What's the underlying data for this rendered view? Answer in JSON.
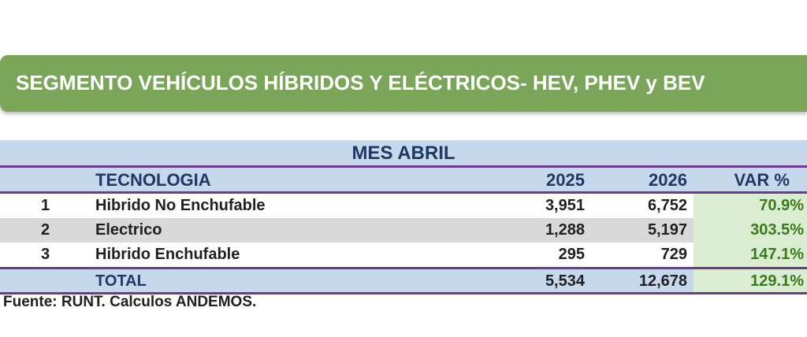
{
  "banner": {
    "title": "SEGMENTO VEHÍCULOS HÍBRIDOS Y ELÉCTRICOS- HEV, PHEV y BEV"
  },
  "table": {
    "month": "MES ABRIL",
    "headers": {
      "tech": "TECNOLOGIA",
      "y2025": "2025",
      "y2026": "2026",
      "var": "VAR %"
    },
    "rows": [
      {
        "num": "1",
        "tech": "Hibrido No Enchufable",
        "y2025": "3,951",
        "y2026": "6,752",
        "var": "70.9%"
      },
      {
        "num": "2",
        "tech": "Electrico",
        "y2025": "1,288",
        "y2026": "5,197",
        "var": "303.5%"
      },
      {
        "num": "3",
        "tech": "Hibrido Enchufable",
        "y2025": "295",
        "y2026": "729",
        "var": "147.1%"
      }
    ],
    "total": {
      "label": "TOTAL",
      "y2025": "5,534",
      "y2026": "12,678",
      "var": "129.1%"
    }
  },
  "source": "Fuente: RUNT. Calculos ANDEMOS."
}
